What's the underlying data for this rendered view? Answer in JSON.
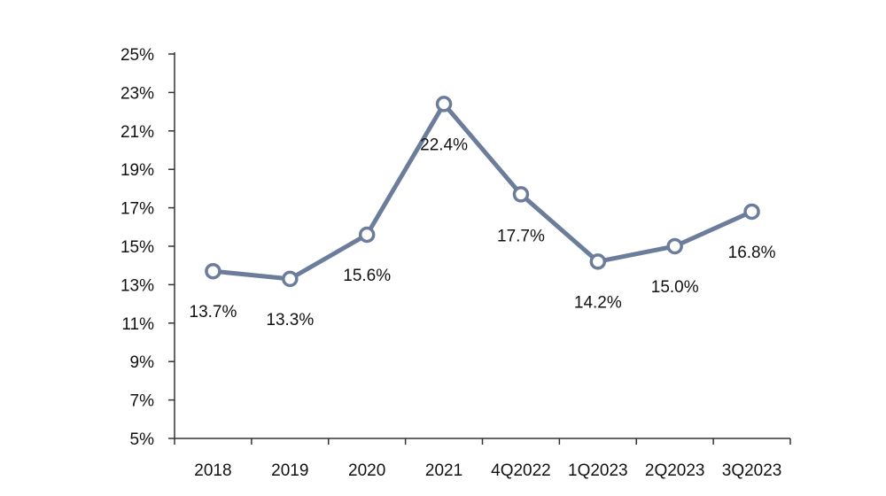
{
  "chart_data": {
    "type": "line",
    "categories": [
      "2018",
      "2019",
      "2020",
      "2021",
      "4Q2022",
      "1Q2023",
      "2Q2023",
      "3Q2023"
    ],
    "series": [
      {
        "values": [
          13.7,
          13.3,
          15.6,
          22.4,
          17.7,
          14.2,
          15.0,
          16.8
        ],
        "data_labels": [
          "13.7%",
          "13.3%",
          "15.6%",
          "22.4%",
          "17.7%",
          "14.2%",
          "15.0%",
          "16.8%"
        ],
        "color": "#6b7d9b"
      }
    ],
    "yticks": [
      "5%",
      "7%",
      "9%",
      "11%",
      "13%",
      "15%",
      "17%",
      "19%",
      "21%",
      "23%",
      "25%"
    ],
    "ylim": [
      5,
      25
    ],
    "grid": false,
    "legend": "none",
    "marker": "hollow-circle"
  }
}
